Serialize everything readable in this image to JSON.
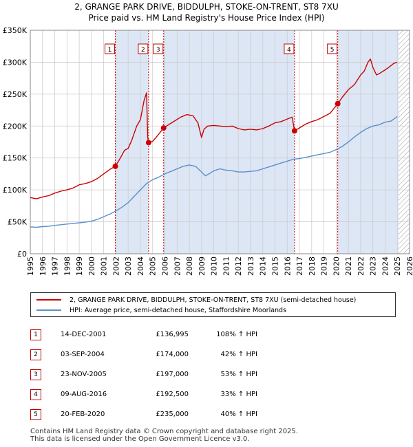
{
  "title_line1": "2, GRANGE PARK DRIVE, BIDDULPH, STOKE-ON-TRENT, ST8 7XU",
  "title_line2": "Price paid vs. HM Land Registry's House Price Index (HPI)",
  "colors": {
    "property": "#cc0000",
    "hpi": "#5b8fcc",
    "shade": "#dde6f5",
    "marker": "#cc0000",
    "grid": "#cccccc"
  },
  "chart_data": {
    "type": "line",
    "ylim": [
      0,
      350000
    ],
    "xlim": [
      1995,
      2026
    ],
    "yticks": [
      0,
      50000,
      100000,
      150000,
      200000,
      250000,
      300000,
      350000
    ],
    "ytick_labels": [
      "£0",
      "£50K",
      "£100K",
      "£150K",
      "£200K",
      "£250K",
      "£300K",
      "£350K"
    ],
    "xticks": [
      1995,
      1996,
      1997,
      1998,
      1999,
      2000,
      2001,
      2002,
      2003,
      2004,
      2005,
      2006,
      2007,
      2008,
      2009,
      2010,
      2011,
      2012,
      2013,
      2014,
      2015,
      2016,
      2017,
      2018,
      2019,
      2020,
      2021,
      2022,
      2023,
      2024,
      2025,
      2026
    ],
    "xtick_labels": [
      "1995",
      "1996",
      "1997",
      "1998",
      "1999",
      "2000",
      "2001",
      "2002",
      "2003",
      "2004",
      "2005",
      "2006",
      "2007",
      "2008",
      "2009",
      "2010",
      "2011",
      "2012",
      "2013",
      "2014",
      "2015",
      "2016",
      "2017",
      "2018",
      "2019",
      "2020",
      "2021",
      "2022",
      "2023",
      "2024",
      "2025",
      "2026"
    ],
    "shaded_regions": [
      [
        2001.95,
        2004.67
      ],
      [
        2005.9,
        2016.6
      ],
      [
        2020.13,
        2025.1
      ]
    ],
    "hatch_from": 2025.1,
    "series": [
      {
        "name": "2, GRANGE PARK DRIVE, BIDDULPH, STOKE-ON-TRENT, ST8 7XU (semi-detached house)",
        "x": [
          1995,
          1995.5,
          1996,
          1996.5,
          1997,
          1997.5,
          1998,
          1998.5,
          1999,
          1999.5,
          2000,
          2000.5,
          2001,
          2001.5,
          2001.95,
          2002.3,
          2002.7,
          2003,
          2003.3,
          2003.7,
          2004,
          2004.3,
          2004.5,
          2004.6,
          2004.67,
          2005.0,
          2005.4,
          2005.9,
          2006.3,
          2006.8,
          2007.3,
          2007.8,
          2008.3,
          2008.7,
          2009.0,
          2009.2,
          2009.5,
          2010,
          2010.5,
          2011,
          2011.5,
          2012,
          2012.5,
          2013,
          2013.5,
          2014,
          2014.5,
          2015,
          2015.5,
          2016,
          2016.4,
          2016.6,
          2017,
          2017.5,
          2018,
          2018.5,
          2019,
          2019.5,
          2020.13,
          2020.5,
          2021,
          2021.5,
          2022,
          2022.3,
          2022.6,
          2022.8,
          2023,
          2023.3,
          2023.6,
          2024,
          2024.3,
          2024.7,
          2025
        ],
        "values": [
          88000,
          86000,
          89000,
          91000,
          95000,
          98000,
          100000,
          103000,
          108000,
          110000,
          113000,
          118000,
          125000,
          132000,
          136995,
          148000,
          162000,
          165000,
          178000,
          200000,
          210000,
          240000,
          252000,
          182000,
          174000,
          176000,
          185000,
          197000,
          202000,
          208000,
          214000,
          218000,
          216000,
          205000,
          182000,
          195000,
          200000,
          201000,
          200000,
          199000,
          200000,
          196000,
          194000,
          195000,
          194000,
          196000,
          200000,
          205000,
          207000,
          211000,
          214000,
          192500,
          197000,
          203000,
          207000,
          210000,
          215000,
          220000,
          235000,
          245000,
          257000,
          265000,
          280000,
          286000,
          300000,
          305000,
          292000,
          280000,
          283000,
          288000,
          292000,
          298000,
          300000
        ]
      },
      {
        "name": "HPI: Average price, semi-detached house, Staffordshire Moorlands",
        "x": [
          1995,
          1995.5,
          1996,
          1996.5,
          1997,
          1997.5,
          1998,
          1998.5,
          1999,
          1999.5,
          2000,
          2000.5,
          2001,
          2001.5,
          2002,
          2002.5,
          2003,
          2003.5,
          2004,
          2004.5,
          2005,
          2005.5,
          2006,
          2006.5,
          2007,
          2007.5,
          2008,
          2008.5,
          2009,
          2009.3,
          2009.6,
          2010,
          2010.5,
          2011,
          2011.5,
          2012,
          2012.5,
          2013,
          2013.5,
          2014,
          2014.5,
          2015,
          2015.5,
          2016,
          2016.5,
          2017,
          2017.5,
          2018,
          2018.5,
          2019,
          2019.5,
          2020,
          2020.5,
          2021,
          2021.5,
          2022,
          2022.5,
          2023,
          2023.5,
          2024,
          2024.5,
          2025
        ],
        "values": [
          42000,
          41500,
          42500,
          43000,
          44500,
          45500,
          46500,
          47500,
          48500,
          49500,
          51000,
          54000,
          58000,
          62000,
          67000,
          73000,
          80000,
          90000,
          100000,
          110000,
          116000,
          120000,
          125000,
          129000,
          133000,
          137000,
          139000,
          137000,
          128000,
          122000,
          125000,
          130000,
          133000,
          131000,
          130000,
          128000,
          128000,
          129000,
          130000,
          133000,
          136000,
          139000,
          142000,
          145000,
          148000,
          149000,
          151000,
          153000,
          155000,
          157000,
          159000,
          163000,
          168000,
          175000,
          183000,
          190000,
          196000,
          200000,
          202000,
          206000,
          208000,
          215000
        ]
      }
    ],
    "sales": [
      {
        "label": "1",
        "x": 2001.95,
        "value": 136995
      },
      {
        "label": "2",
        "x": 2004.67,
        "value": 174000
      },
      {
        "label": "3",
        "x": 2005.9,
        "value": 197000
      },
      {
        "label": "4",
        "x": 2016.6,
        "value": 192500
      },
      {
        "label": "5",
        "x": 2020.13,
        "value": 235000
      }
    ]
  },
  "legend": {
    "property": "2, GRANGE PARK DRIVE, BIDDULPH, STOKE-ON-TRENT, ST8 7XU (semi-detached house)",
    "hpi": "HPI: Average price, semi-detached house, Staffordshire Moorlands"
  },
  "transactions": [
    {
      "num": "1",
      "date": "14-DEC-2001",
      "price": "£136,995",
      "hpi": "108% ↑ HPI"
    },
    {
      "num": "2",
      "date": "03-SEP-2004",
      "price": "£174,000",
      "hpi": "42% ↑ HPI"
    },
    {
      "num": "3",
      "date": "23-NOV-2005",
      "price": "£197,000",
      "hpi": "53% ↑ HPI"
    },
    {
      "num": "4",
      "date": "09-AUG-2016",
      "price": "£192,500",
      "hpi": "33% ↑ HPI"
    },
    {
      "num": "5",
      "date": "20-FEB-2020",
      "price": "£235,000",
      "hpi": "40% ↑ HPI"
    }
  ],
  "footer_line1": "Contains HM Land Registry data © Crown copyright and database right 2025.",
  "footer_line2": "This data is licensed under the Open Government Licence v3.0."
}
